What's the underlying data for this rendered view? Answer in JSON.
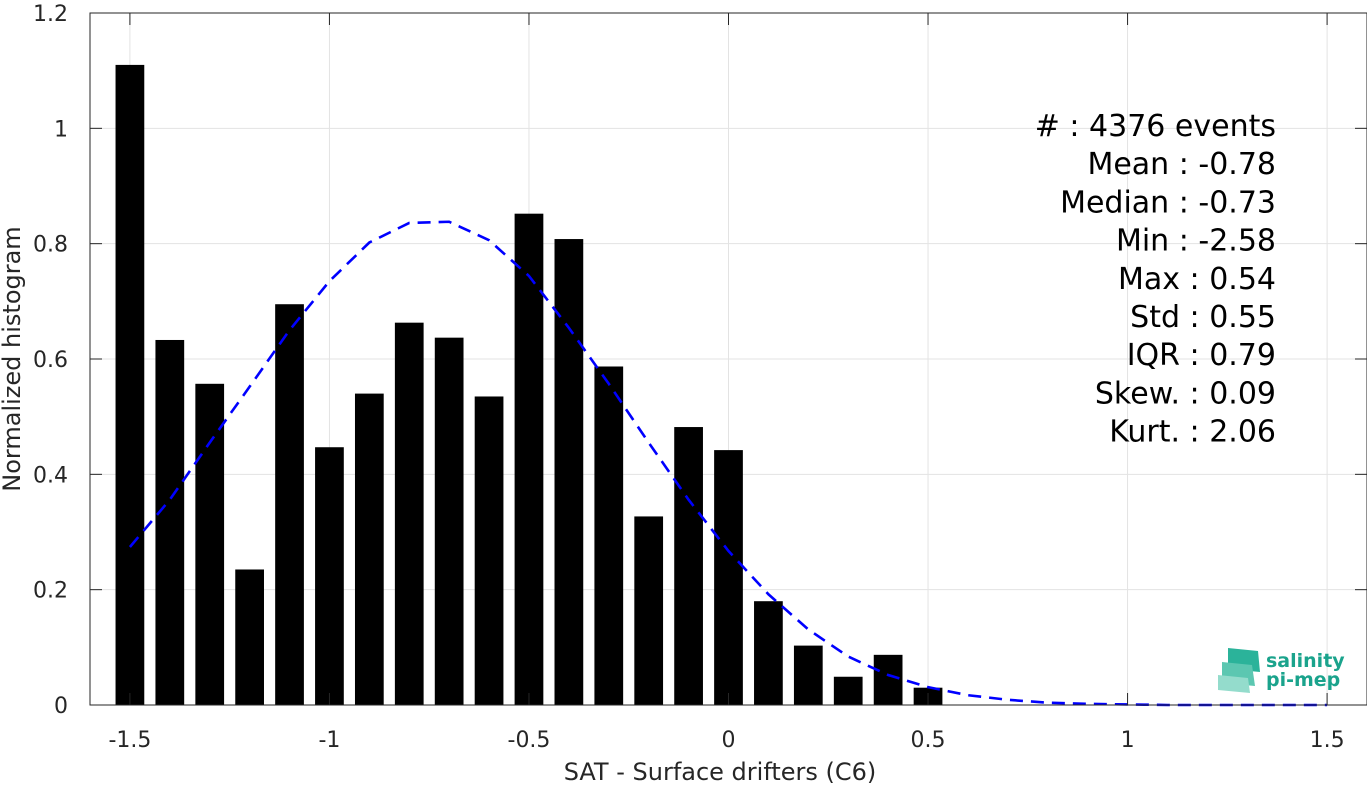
{
  "chart_data": {
    "type": "bar",
    "xlabel": "SAT - Surface drifters (C6)",
    "ylabel": "Normalized histogram",
    "xlim": [
      -1.6,
      1.6
    ],
    "ylim": [
      0,
      1.2
    ],
    "x_ticks": [
      -1.5,
      -1,
      -0.5,
      0,
      0.5,
      1,
      1.5
    ],
    "x_tick_labels": [
      "-1.5",
      "-1",
      "-0.5",
      "0",
      "0.5",
      "1",
      "1.5"
    ],
    "y_ticks": [
      0,
      0.2,
      0.4,
      0.6,
      0.8,
      1,
      1.2
    ],
    "y_tick_labels": [
      "0",
      "0.2",
      "0.4",
      "0.6",
      "0.8",
      "1",
      "1.2"
    ],
    "grid": true,
    "bar_color": "#000000",
    "bin_width": 0.1,
    "bars": {
      "x": [
        -1.5,
        -1.4,
        -1.3,
        -1.2,
        -1.1,
        -1.0,
        -0.9,
        -0.8,
        -0.7,
        -0.6,
        -0.5,
        -0.4,
        -0.3,
        -0.2,
        -0.1,
        0.0,
        0.1,
        0.2,
        0.3,
        0.4,
        0.5
      ],
      "values": [
        1.11,
        0.633,
        0.557,
        0.235,
        0.695,
        0.447,
        0.54,
        0.663,
        0.637,
        0.535,
        0.852,
        0.808,
        0.587,
        0.327,
        0.482,
        0.442,
        0.18,
        0.103,
        0.049,
        0.087,
        0.03
      ]
    },
    "fit_curve": {
      "style": "dashed",
      "color": "#0000ff",
      "x": [
        -1.5,
        -1.4,
        -1.3,
        -1.2,
        -1.1,
        -1.0,
        -0.9,
        -0.8,
        -0.7,
        -0.6,
        -0.5,
        -0.4,
        -0.3,
        -0.2,
        -0.1,
        0.0,
        0.1,
        0.2,
        0.3,
        0.4,
        0.5,
        0.6,
        0.7,
        0.8,
        0.9,
        1.0,
        1.1,
        1.2,
        1.3,
        1.4,
        1.5
      ],
      "y": [
        0.274,
        0.356,
        0.455,
        0.552,
        0.65,
        0.735,
        0.802,
        0.836,
        0.838,
        0.806,
        0.744,
        0.654,
        0.557,
        0.455,
        0.356,
        0.267,
        0.192,
        0.131,
        0.084,
        0.052,
        0.031,
        0.017,
        0.009,
        0.004,
        0.002,
        0.001,
        0.0,
        0.0,
        0.0,
        0.0,
        0.0
      ]
    },
    "stats": [
      {
        "label": "#  : 4376 events"
      },
      {
        "label": "Mean : -0.78"
      },
      {
        "label": "Median : -0.73"
      },
      {
        "label": "Min : -2.58"
      },
      {
        "label": "Max : 0.54"
      },
      {
        "label": "Std : 0.55"
      },
      {
        "label": "IQR : 0.79"
      },
      {
        "label": "Skew. : 0.09"
      },
      {
        "label": "Kurt. : 2.06"
      }
    ]
  },
  "logo": {
    "line1": "salinity",
    "line2": "pi-mep",
    "color": "#1aa38c"
  }
}
